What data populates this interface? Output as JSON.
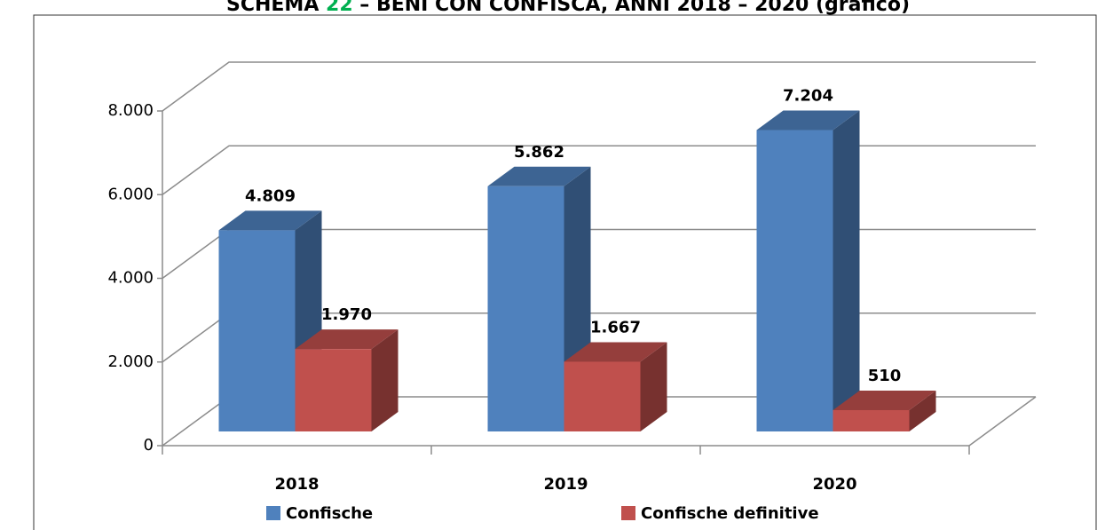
{
  "chart_data": {
    "type": "bar3d",
    "title_prefix": "SCHEMA ",
    "title_number": "22",
    "title_rest": " – BENI CON CONFISCA, ANNI 2018 – 2020 (grafico)",
    "categories": [
      "2018",
      "2019",
      "2020"
    ],
    "series": [
      {
        "name": "Confische",
        "color": "#4f81bd",
        "values": [
          4809,
          5862,
          7204
        ],
        "value_labels": [
          "4.809",
          "5.862",
          "7.204"
        ]
      },
      {
        "name": "Confische definitive",
        "color": "#c0504d",
        "values": [
          1970,
          1667,
          510
        ],
        "value_labels": [
          "1.970",
          "1.667",
          "510"
        ]
      }
    ],
    "ylim": [
      0,
      8000
    ],
    "yticks": [
      0,
      {
        "value": 2000,
        "label": "2.000"
      },
      {
        "value": 4000,
        "label": "4.000"
      },
      {
        "value": 6000,
        "label": "6.000"
      },
      {
        "value": 8000,
        "label": "8.000"
      }
    ],
    "grid": true,
    "legend": "bottom"
  }
}
